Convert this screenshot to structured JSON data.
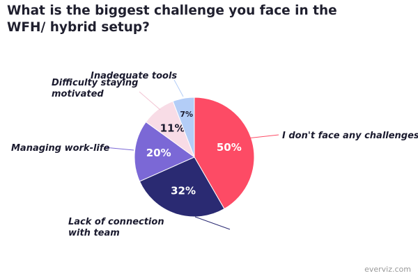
{
  "title": "What is the biggest challenge you face in the WFH/ hybrid setup?",
  "credit": "everviz.com",
  "chart_data": {
    "type": "pie",
    "title": "What is the biggest challenge you face in the WFH/ hybrid setup?",
    "slices": [
      {
        "label": "I don't face any challenges",
        "value": 50,
        "pct_text": "50%",
        "color": "#fd4b65",
        "pct_color": "#ffffff",
        "label_lines": [
          "I don't face any challenges"
        ]
      },
      {
        "label": "Lack of connection with team",
        "value": 32,
        "pct_text": "32%",
        "color": "#2a2a72",
        "pct_color": "#ffffff",
        "label_lines": [
          "Lack of connection",
          "with team"
        ]
      },
      {
        "label": "Managing work-life",
        "value": 20,
        "pct_text": "20%",
        "color": "#7b68d6",
        "pct_color": "#ffffff",
        "label_lines": [
          "Managing work-life"
        ]
      },
      {
        "label": "Difficulty staying motivated",
        "value": 11,
        "pct_text": "11%",
        "color": "#f8dce6",
        "pct_color": "#1a1a2e",
        "label_lines": [
          "Difficulty staying",
          "motivated"
        ]
      },
      {
        "label": "Inadequate tools",
        "value": 7,
        "pct_text": "7%",
        "color": "#b3cdf7",
        "pct_color": "#1a1a2e",
        "label_lines": [
          "Inadequate tools"
        ]
      }
    ]
  }
}
